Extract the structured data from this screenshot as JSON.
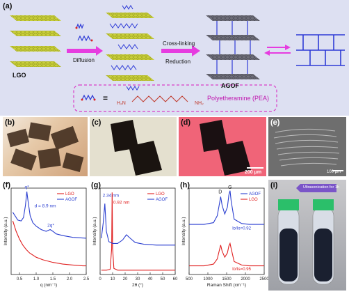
{
  "figure": {
    "panel_a": {
      "label": "(a)",
      "lgo_label": "LGO",
      "diffusion_label": "Diffusion",
      "crosslinking_label": "Cross-linking",
      "reduction_label": "Reduction",
      "agof_label": "AGOF",
      "equals_sign": "=",
      "pea_name": "Polyetheramine (PEA)",
      "pea_h2n": "H₂N",
      "pea_nh2": "NH₂",
      "colors": {
        "background": "#dde0f2",
        "sheet": "#c9cf3a",
        "agof_sheet": "#6f6f7a",
        "chain": "#2e3bd6",
        "arrow": "#e63ce0",
        "dash_box": "#d93cc8"
      }
    },
    "panel_b": {
      "label": "(b)"
    },
    "panel_c": {
      "label": "(c)"
    },
    "panel_d": {
      "label": "(d)",
      "scale_bar": "200 μm"
    },
    "panel_e": {
      "label": "(e)",
      "scale_bar": "100 μm"
    },
    "panel_i": {
      "label": "(i)",
      "caption": "Ultrasonication for 1h"
    }
  },
  "chart_data": [
    {
      "panel": "(f)",
      "type": "line",
      "xlabel": "q (nm⁻¹)",
      "ylabel": "Intensity (a.u.)",
      "xlim": [
        0.25,
        2.5
      ],
      "xticks": [
        "0.5",
        "1.0",
        "1.5",
        "2.0",
        "2.5"
      ],
      "annotations": [
        "q*",
        "2q*",
        "d = 8.9 nm"
      ],
      "series": [
        {
          "name": "LGO",
          "color": "#e02020",
          "x": [
            0.3,
            0.4,
            0.5,
            0.6,
            0.7,
            0.8,
            1.0,
            1.2,
            1.5,
            1.8,
            2.1,
            2.4,
            2.5
          ],
          "y": [
            0.62,
            0.5,
            0.41,
            0.34,
            0.29,
            0.25,
            0.2,
            0.17,
            0.14,
            0.12,
            0.11,
            0.1,
            0.1
          ]
        },
        {
          "name": "AGOF",
          "color": "#2b3fd0",
          "x": [
            0.3,
            0.45,
            0.55,
            0.62,
            0.68,
            0.72,
            0.76,
            0.82,
            0.9,
            1.0,
            1.15,
            1.3,
            1.42,
            1.5,
            1.6,
            1.8,
            2.1,
            2.5
          ],
          "y": [
            0.72,
            0.63,
            0.62,
            0.66,
            0.8,
            0.96,
            0.84,
            0.68,
            0.6,
            0.56,
            0.52,
            0.5,
            0.52,
            0.5,
            0.47,
            0.45,
            0.43,
            0.42
          ]
        }
      ]
    },
    {
      "panel": "(g)",
      "type": "line",
      "xlabel": "2θ (°)",
      "ylabel": "Intensity (a.u.)",
      "xlim": [
        0,
        60
      ],
      "xticks": [
        "0",
        "10",
        "20",
        "30",
        "40",
        "50",
        "60"
      ],
      "annotations": [
        "2.34 nm",
        "0.92 nm"
      ],
      "series": [
        {
          "name": "LGO",
          "color": "#e02020",
          "x": [
            1,
            5,
            8,
            9.2,
            9.6,
            10,
            11,
            14,
            20,
            30,
            40,
            50,
            60
          ],
          "y": [
            0.05,
            0.05,
            0.06,
            0.3,
            0.95,
            0.3,
            0.07,
            0.05,
            0.05,
            0.05,
            0.05,
            0.05,
            0.05
          ]
        },
        {
          "name": "AGOF",
          "color": "#2b3fd0",
          "x": [
            1,
            2.5,
            3.8,
            5,
            7,
            10,
            14,
            18,
            21,
            24,
            28,
            35,
            45,
            60
          ],
          "y": [
            0.42,
            0.6,
            0.82,
            0.5,
            0.38,
            0.36,
            0.36,
            0.4,
            0.46,
            0.42,
            0.37,
            0.35,
            0.34,
            0.34
          ]
        }
      ]
    },
    {
      "panel": "(h)",
      "type": "line",
      "xlabel": "Raman Shift (cm⁻¹)",
      "ylabel": "Intensity (a.u.)",
      "xlim": [
        500,
        2500
      ],
      "xticks": [
        "500",
        "1000",
        "1500",
        "2000",
        "2500"
      ],
      "annotations": [
        "D",
        "G",
        "Iᴅ/Iɢ=0.92",
        "Iᴅ/Iɢ=0.95"
      ],
      "series": [
        {
          "name": "AGOF",
          "color": "#2b3fd0",
          "x": [
            500,
            900,
            1150,
            1250,
            1300,
            1340,
            1380,
            1450,
            1520,
            1560,
            1590,
            1620,
            1700,
            1900,
            2100,
            2500
          ],
          "y": [
            0.58,
            0.58,
            0.6,
            0.68,
            0.8,
            0.9,
            0.8,
            0.7,
            0.78,
            0.92,
            0.97,
            0.85,
            0.64,
            0.59,
            0.58,
            0.58
          ]
        },
        {
          "name": "LGO",
          "color": "#e02020",
          "x": [
            500,
            900,
            1150,
            1250,
            1300,
            1340,
            1380,
            1450,
            1520,
            1560,
            1590,
            1620,
            1700,
            1900,
            2100,
            2500
          ],
          "y": [
            0.1,
            0.1,
            0.12,
            0.18,
            0.27,
            0.34,
            0.27,
            0.2,
            0.25,
            0.33,
            0.36,
            0.3,
            0.15,
            0.11,
            0.1,
            0.1
          ]
        }
      ]
    }
  ]
}
